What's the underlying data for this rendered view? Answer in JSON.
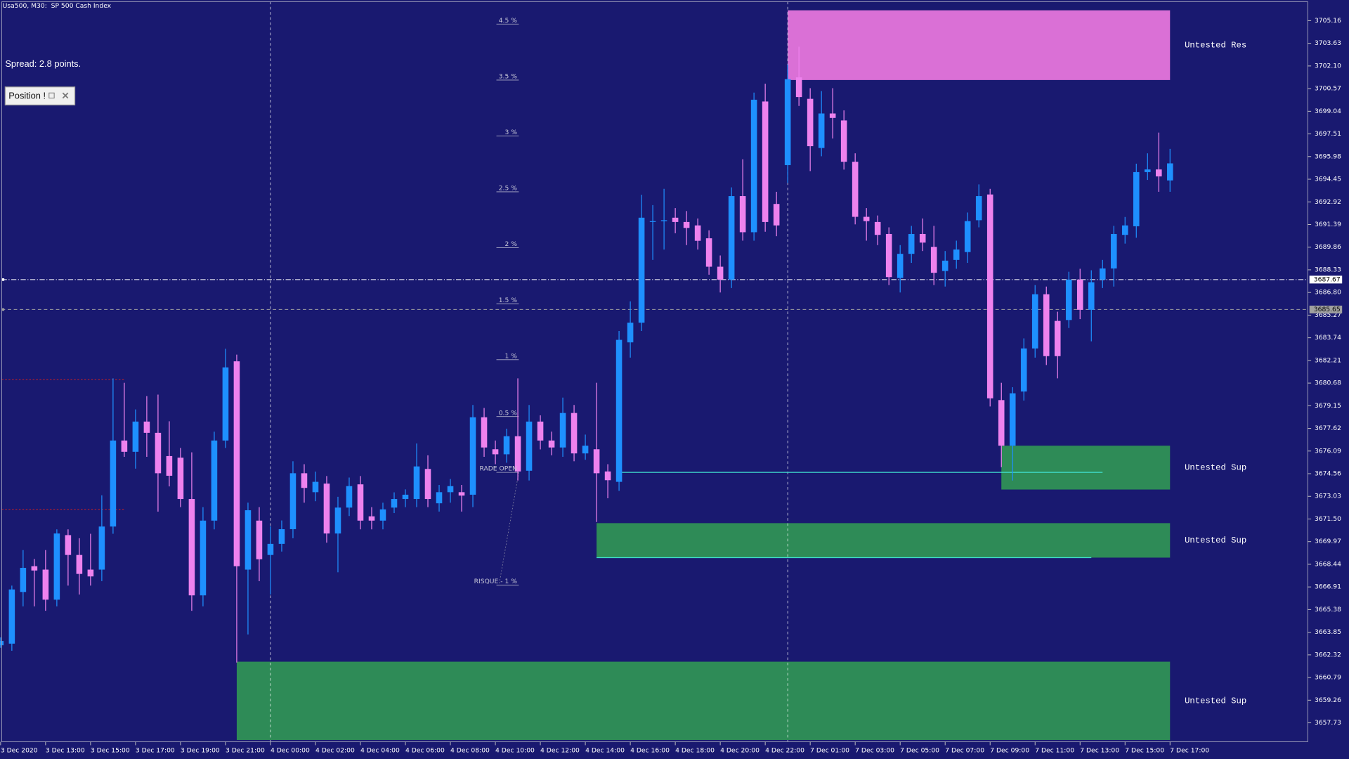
{
  "chart_data": {
    "type": "candlestick",
    "title": "Usa500, M30:  SP 500 Cash Index",
    "up_color": "#1e90ff",
    "down_color": "#ee82ee",
    "categories": [
      "3 Dec 2020",
      null,
      null,
      null,
      "3 Dec 13:00",
      null,
      null,
      null,
      "3 Dec 15:00",
      null,
      null,
      null,
      "3 Dec 17:00",
      null,
      null,
      null,
      "3 Dec 19:00",
      null,
      null,
      null,
      "3 Dec 21:00",
      null,
      null,
      null,
      "4 Dec 00:00",
      null,
      null,
      null,
      "4 Dec 02:00",
      null,
      null,
      null,
      "4 Dec 04:00",
      null,
      null,
      null,
      "4 Dec 06:00",
      null,
      null,
      null,
      "4 Dec 08:00",
      null,
      null,
      null,
      "4 Dec 10:00",
      null,
      null,
      null,
      "4 Dec 12:00",
      null,
      null,
      null,
      "4 Dec 14:00",
      null,
      null,
      null,
      "4 Dec 16:00",
      null,
      null,
      null,
      "4 Dec 18:00",
      null,
      null,
      null,
      "4 Dec 20:00",
      null,
      null,
      null,
      "4 Dec 22:00",
      null,
      null,
      null,
      "7 Dec 01:00",
      null,
      null,
      null,
      "7 Dec 03:00",
      null,
      null,
      null,
      "7 Dec 05:00",
      null,
      null,
      null,
      "7 Dec 07:00",
      null,
      null,
      null,
      "7 Dec 09:00",
      null,
      null,
      null,
      "7 Dec 11:00",
      null,
      null,
      null,
      "7 Dec 13:00",
      null,
      null,
      null,
      "7 Dec 15:00",
      null,
      null,
      null,
      "7 Dec 17:00"
    ],
    "open": [
      3662.97,
      3663.08,
      3666.57,
      3668.31,
      3668.08,
      3666.05,
      3670.41,
      3669.07,
      3668.08,
      3668.08,
      3670.99,
      3676.8,
      3676.04,
      3678.08,
      3677.32,
      3675.75,
      3675.64,
      3672.85,
      3666.34,
      3671.39,
      3676.8,
      3682.15,
      3668.08,
      3671.39,
      3669.07,
      3669.82,
      3670.81,
      3674.59,
      3673.31,
      3673.89,
      3670.52,
      3672.27,
      3673.84,
      3671.68,
      3671.39,
      3672.27,
      3672.85,
      3672.85,
      3674.88,
      3672.56,
      3673.31,
      3673.31,
      3673.14,
      3678.37,
      3676.21,
      3675.87,
      3677.09,
      3674.76,
      3678.08,
      3676.8,
      3676.33,
      3678.66,
      3675.93,
      3676.21,
      3674.71,
      3674.01,
      3683.43,
      3684.76,
      3691.56,
      3691.62,
      3691.85,
      3691.56,
      3691.33,
      3690.46,
      3688.54,
      3687.67,
      3693.31,
      3690.87,
      3699.7,
      3692.78,
      3695.4,
      3701.33,
      3699.88,
      3696.56,
      3698.89,
      3698.42,
      3695.63,
      3691.91,
      3691.56,
      3690.75,
      3687.78,
      3689.41,
      3690.75,
      3689.88,
      3688.25,
      3689.0,
      3689.53,
      3691.68,
      3693.42,
      3679.53,
      3676.45,
      3680.11,
      3683.02,
      3686.68,
      3684.88,
      3684.94,
      3687.67,
      3685.63,
      3687.67,
      3688.42,
      3690.69,
      3691.27,
      3694.93,
      3695.11,
      3694.37
    ],
    "high": [
      3663.5,
      3667.0,
      3669.4,
      3668.8,
      3669.4,
      3670.8,
      3670.8,
      3670.2,
      3670.5,
      3673.1,
      3681.0,
      3680.7,
      3678.9,
      3679.8,
      3679.9,
      3678.1,
      3676.3,
      3676.0,
      3672.3,
      3677.4,
      3683.0,
      3682.6,
      3672.6,
      3672.3,
      3671.0,
      3671.4,
      3675.4,
      3675.2,
      3674.7,
      3674.4,
      3673.0,
      3674.3,
      3674.4,
      3672.3,
      3672.6,
      3673.3,
      3673.5,
      3676.6,
      3675.8,
      3673.8,
      3674.2,
      3673.8,
      3679.2,
      3679.0,
      3676.8,
      3677.6,
      3681.0,
      3679.2,
      3678.5,
      3677.4,
      3679.7,
      3679.2,
      3677.2,
      3680.7,
      3675.2,
      3684.2,
      3686.2,
      3693.4,
      3692.7,
      3693.8,
      3692.5,
      3692.3,
      3691.8,
      3691.0,
      3689.3,
      3693.9,
      3695.8,
      3700.3,
      3700.9,
      3693.6,
      3702.2,
      3703.4,
      3700.6,
      3700.4,
      3700.6,
      3699.1,
      3696.2,
      3692.5,
      3692.0,
      3691.2,
      3690.0,
      3691.3,
      3691.8,
      3691.3,
      3689.6,
      3690.3,
      3692.2,
      3694.1,
      3693.8,
      3680.7,
      3680.4,
      3683.7,
      3687.3,
      3687.2,
      3685.5,
      3688.2,
      3688.4,
      3688.3,
      3689.0,
      3691.3,
      3691.9,
      3695.5,
      3696.2,
      3697.6,
      3696.5
    ],
    "low": [
      3662.8,
      3662.6,
      3665.6,
      3665.6,
      3665.3,
      3665.6,
      3667.0,
      3666.4,
      3667.0,
      3667.3,
      3670.5,
      3675.7,
      3674.9,
      3675.7,
      3672.0,
      3673.7,
      3672.3,
      3665.3,
      3665.6,
      3670.8,
      3676.3,
      3661.8,
      3663.7,
      3667.3,
      3666.4,
      3669.3,
      3670.2,
      3672.6,
      3672.7,
      3669.9,
      3667.9,
      3671.7,
      3670.8,
      3670.8,
      3670.8,
      3671.9,
      3672.3,
      3672.3,
      3672.3,
      3672.0,
      3672.6,
      3672.0,
      3672.3,
      3675.7,
      3675.2,
      3675.3,
      3674.1,
      3674.1,
      3676.2,
      3675.8,
      3675.7,
      3675.4,
      3675.5,
      3671.3,
      3672.9,
      3673.4,
      3682.4,
      3684.2,
      3689.0,
      3689.7,
      3690.8,
      3690.0,
      3689.7,
      3688.0,
      3686.8,
      3687.1,
      3690.3,
      3690.3,
      3690.9,
      3690.6,
      3694.2,
      3699.4,
      3695.0,
      3696.0,
      3697.2,
      3695.1,
      3691.4,
      3690.3,
      3690.0,
      3687.3,
      3686.8,
      3688.8,
      3689.6,
      3687.3,
      3687.2,
      3688.4,
      3688.8,
      3691.2,
      3679.1,
      3675.0,
      3674.1,
      3679.5,
      3682.4,
      3681.9,
      3681.0,
      3684.4,
      3685.0,
      3683.5,
      3687.1,
      3687.2,
      3690.1,
      3690.5,
      3694.4,
      3693.6,
      3693.6
    ],
    "close": [
      3663.26,
      3666.74,
      3668.2,
      3668.02,
      3666.05,
      3670.52,
      3669.07,
      3667.79,
      3667.62,
      3670.99,
      3676.8,
      3676.04,
      3678.08,
      3677.32,
      3674.59,
      3674.42,
      3672.85,
      3666.34,
      3671.39,
      3676.8,
      3681.74,
      3668.31,
      3672.09,
      3668.78,
      3669.82,
      3670.81,
      3674.59,
      3673.6,
      3674.01,
      3670.52,
      3672.27,
      3673.72,
      3671.39,
      3671.39,
      3672.15,
      3672.85,
      3673.14,
      3675.05,
      3672.85,
      3673.31,
      3673.72,
      3673.08,
      3678.37,
      3676.33,
      3675.87,
      3677.09,
      3674.71,
      3678.08,
      3676.8,
      3676.33,
      3678.66,
      3675.93,
      3676.45,
      3674.59,
      3674.12,
      3683.6,
      3684.76,
      3691.85,
      3691.62,
      3691.68,
      3691.56,
      3691.16,
      3690.29,
      3688.54,
      3687.67,
      3693.31,
      3690.87,
      3699.82,
      3691.56,
      3691.33,
      3701.21,
      3700.0,
      3696.68,
      3698.89,
      3698.59,
      3695.63,
      3691.91,
      3691.62,
      3690.69,
      3687.84,
      3689.41,
      3690.75,
      3690.17,
      3688.13,
      3688.95,
      3689.7,
      3691.62,
      3693.31,
      3679.65,
      3676.45,
      3679.99,
      3683.02,
      3686.68,
      3682.5,
      3682.5,
      3687.67,
      3685.63,
      3687.49,
      3688.42,
      3690.75,
      3691.33,
      3694.93,
      3695.11,
      3694.64,
      3695.52
    ],
    "ylim": [
      3656.45,
      3706.44
    ],
    "yticks": [
      3705.16,
      3703.63,
      {
        "value": 3702.1,
        "label": "3702.10"
      },
      3700.57,
      3699.04,
      3697.51,
      3695.98,
      3694.45,
      3692.92,
      3691.39,
      3689.86,
      3688.33,
      {
        "value": 3686.8,
        "label": "3686.80"
      },
      3685.27,
      3683.74,
      3682.21,
      3680.68,
      3679.15,
      3677.62,
      3676.09,
      3674.56,
      3673.03,
      {
        "value": 3671.5,
        "label": "3671.50"
      },
      3669.97,
      3668.44,
      3666.91,
      3665.38,
      3663.85,
      3662.32,
      3660.79,
      3659.26,
      3657.73
    ],
    "zones": [
      {
        "label": "Untested Res",
        "low": 3701.15,
        "high": 3705.86,
        "start": 70,
        "end": 104,
        "color": "#da70d6"
      },
      {
        "label": "Untested Sup",
        "low": 3673.49,
        "high": 3676.45,
        "start": 89,
        "end": 104,
        "color": "#2e8b57"
      },
      {
        "label": "Untested Sup",
        "low": 3668.89,
        "high": 3671.22,
        "start": 53,
        "end": 104,
        "color": "#2e8b57"
      },
      {
        "label": "Untested Sup",
        "low": 3656.57,
        "high": 3661.86,
        "start": 21,
        "end": 104,
        "color": "#2e8b57"
      }
    ],
    "levels": [
      {
        "label": "4.5 %",
        "price": 3704.93
      },
      {
        "label": "3.5 %",
        "price": 3701.15
      },
      {
        "label": "3 %",
        "price": 3697.37
      },
      {
        "label": "2.5 %",
        "price": 3693.6
      },
      {
        "label": "2 %",
        "price": 3689.82
      },
      {
        "label": "1.5 %",
        "price": 3686.04
      },
      {
        "label": "1 %",
        "price": 3682.26
      },
      {
        "label": "0.5 %",
        "price": 3678.42
      },
      {
        "label": "RADE OPEN",
        "price": 3674.65
      },
      {
        "label": "RISQUE - 1 %",
        "price": 3667.03
      }
    ],
    "price_lines": [
      {
        "value": 3687.67,
        "color": "#ffffff"
      },
      {
        "value": 3685.65,
        "color": "#a0a0a0"
      }
    ],
    "cyan_lines": [
      {
        "price": 3674.65,
        "start": 55,
        "end": 98
      },
      {
        "price": 3668.89,
        "start": 53,
        "end": 97
      }
    ],
    "red_lines": [
      {
        "price": 3680.92,
        "end": 11
      },
      {
        "price": 3672.15,
        "end": 11
      }
    ],
    "vlines": [
      24,
      70
    ]
  },
  "ui": {
    "spread": "Spread: 2.8 points.",
    "position_button": "Position !"
  }
}
